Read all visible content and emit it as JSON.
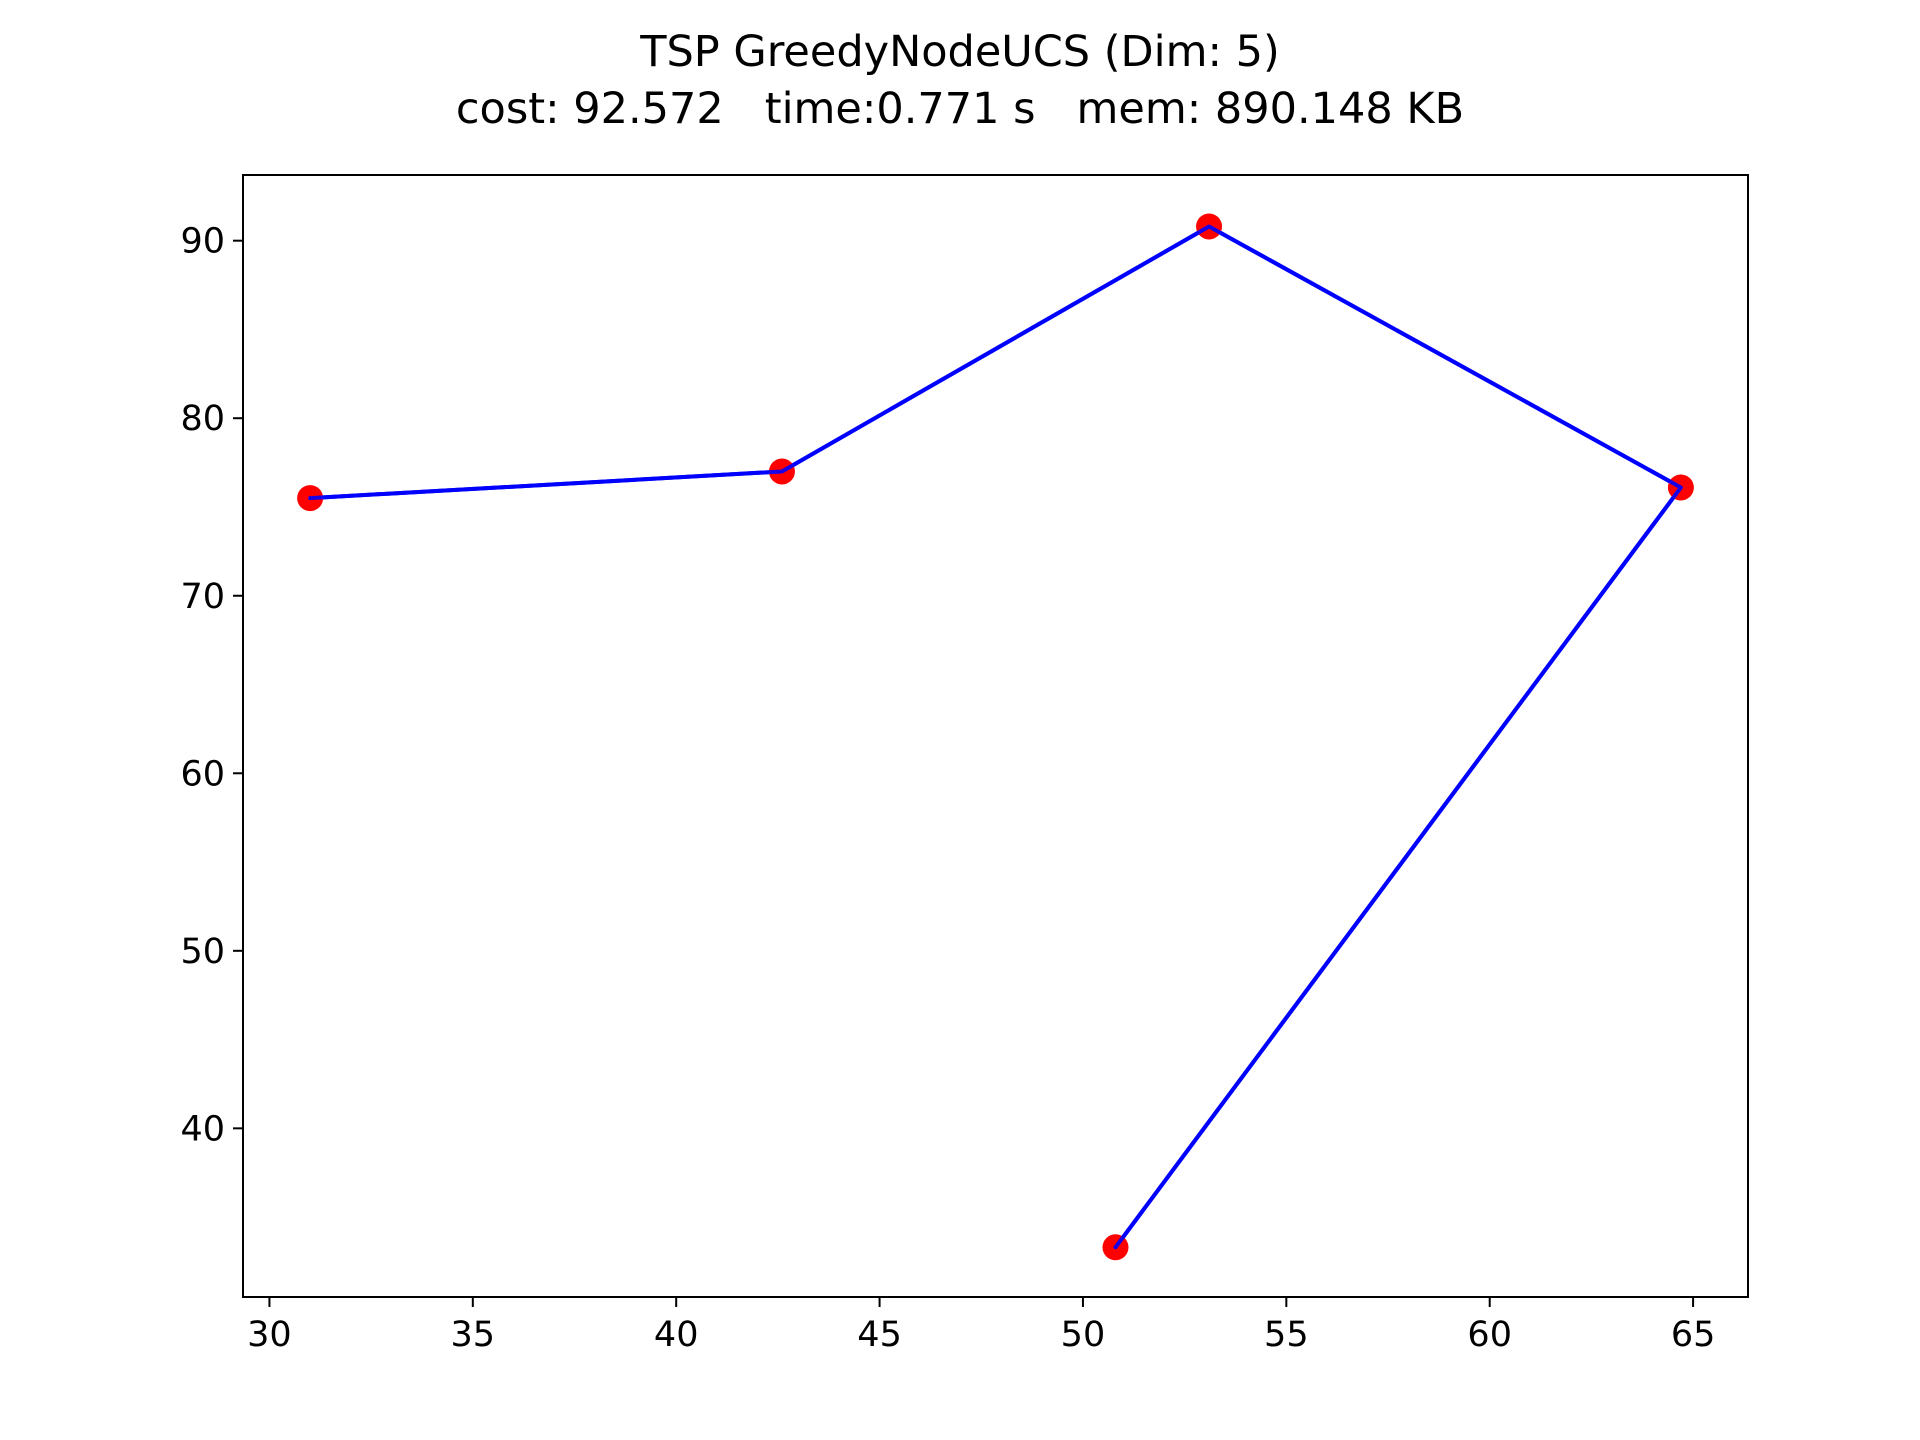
{
  "chart_data": {
    "type": "line",
    "title": "TSP GreedyNodeUCS (Dim: 5)",
    "subtitle": "cost: 92.572   time:0.771 s   mem: 890.148 KB",
    "xlabel": "",
    "ylabel": "",
    "xlim": [
      29.35,
      66.35
    ],
    "ylim": [
      30.5,
      93.7
    ],
    "x_ticks": [
      30,
      35,
      40,
      45,
      50,
      55,
      60,
      65
    ],
    "y_ticks": [
      40,
      50,
      60,
      70,
      80,
      90
    ],
    "grid": false,
    "series": [
      {
        "color": "#0000ff",
        "marker_color": "#ff0000",
        "points": [
          {
            "x": 31.0,
            "y": 75.5
          },
          {
            "x": 42.6,
            "y": 77.0
          },
          {
            "x": 53.1,
            "y": 90.8
          },
          {
            "x": 64.7,
            "y": 76.1
          },
          {
            "x": 50.8,
            "y": 33.3
          }
        ]
      }
    ]
  }
}
